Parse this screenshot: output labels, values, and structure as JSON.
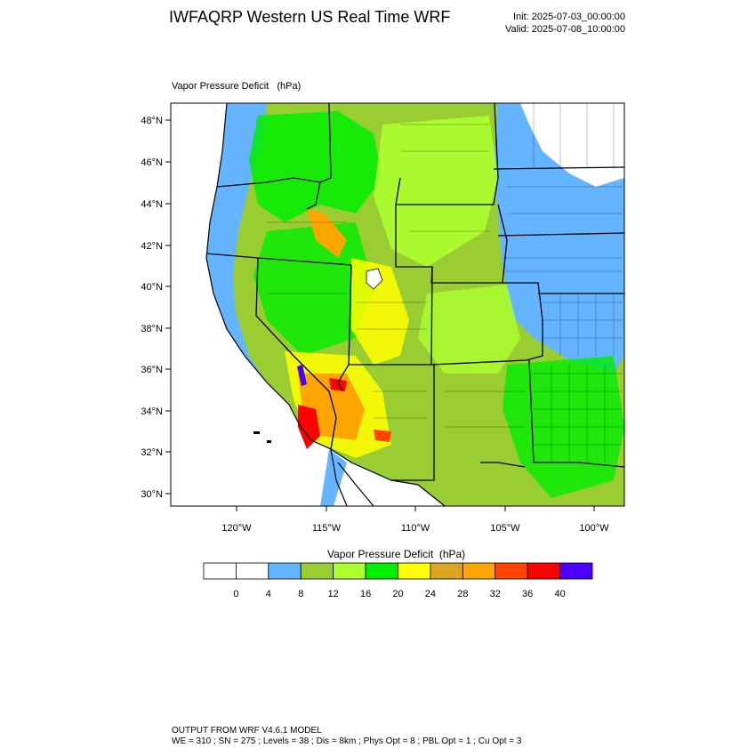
{
  "title": "IWFAQRP Western US Real Time WRF",
  "init_label": "Init: 2025-07-03_00:00:00",
  "valid_label": "Valid: 2025-07-08_10:00:00",
  "field_label": "Vapor Pressure Deficit   (hPa)",
  "legend_title": "Vapor Pressure Deficit  (hPa)",
  "footer_line1": "OUTPUT FROM WRF V4.6.1 MODEL",
  "footer_line2": "WE = 310 ; SN = 275 ; Levels = 38 ; Dis = 8km ; Phys Opt = 8 ; PBL Opt = 1 ; Cu Opt = 3",
  "lat_labels": [
    "48°N",
    "46°N",
    "44°N",
    "42°N",
    "40°N",
    "38°N",
    "36°N",
    "34°N",
    "32°N",
    "30°N"
  ],
  "lon_labels": [
    "120°W",
    "115°W",
    "110°W",
    "105°W",
    "100°W"
  ],
  "colorbar": {
    "colors": [
      "#ffffff",
      "#ffffff",
      "#64b4ff",
      "#9acd32",
      "#adff2f",
      "#00ee00",
      "#ffff00",
      "#daa520",
      "#ffa500",
      "#ff4500",
      "#ff0000",
      "#4b00ff"
    ],
    "labels": [
      "0",
      "4",
      "8",
      "12",
      "16",
      "20",
      "24",
      "28",
      "32",
      "36",
      "40"
    ]
  },
  "map_colors": {
    "ocean": "#ffffff",
    "land_low": "#64b4ff",
    "land_mid": "#9acd32",
    "land_green": "#00ee00",
    "land_lime": "#adff2f",
    "hot_yellow": "#ffff00",
    "hot_gold": "#daa520",
    "hot_orange": "#ffa500",
    "hot_red": "#ff0000",
    "hot_purple": "#4b00ff"
  }
}
